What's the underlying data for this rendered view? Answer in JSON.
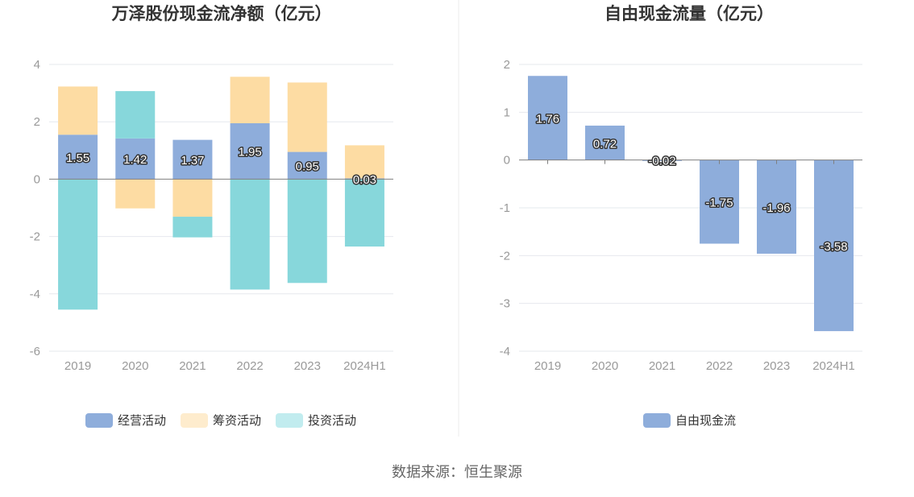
{
  "source": "数据来源：恒生聚源",
  "colors": {
    "operating": "#8eaddb",
    "financing": "#fddca3",
    "investing": "#87d7db",
    "investing_legend": "#c1ecef",
    "financing_legend": "#feeccd",
    "free_cash_flow": "#8eaddb",
    "grid": "#e6e8ee",
    "axis_zero": "#7f7f7f",
    "text_dark": "#333333",
    "tick": "#999999"
  },
  "chart_data": [
    {
      "type": "bar",
      "stacked": true,
      "title": "万泽股份现金流净额（亿元）",
      "categories": [
        "2019",
        "2020",
        "2021",
        "2022",
        "2023",
        "2024H1"
      ],
      "ylim": [
        -6,
        4
      ],
      "yticks": [
        4,
        2,
        0,
        -2,
        -4,
        -6
      ],
      "grid": true,
      "legend_position": "bottom",
      "series": [
        {
          "name": "经营活动",
          "values": [
            1.55,
            1.42,
            1.37,
            1.95,
            0.95,
            0.03
          ],
          "labels": [
            "1.55",
            "1.42",
            "1.37",
            "1.95",
            "0.95",
            "0.03"
          ]
        },
        {
          "name": "筹资活动",
          "values": [
            1.68,
            -1.02,
            -1.31,
            1.62,
            2.42,
            1.15
          ]
        },
        {
          "name": "投资活动",
          "values": [
            -4.55,
            1.65,
            -0.72,
            -3.85,
            -3.62,
            -2.35
          ]
        }
      ]
    },
    {
      "type": "bar",
      "title": "自由现金流量（亿元）",
      "categories": [
        "2019",
        "2020",
        "2021",
        "2022",
        "2023",
        "2024H1"
      ],
      "ylim": [
        -4,
        2
      ],
      "yticks": [
        2,
        1,
        0,
        -1,
        -2,
        -3,
        -4
      ],
      "grid": true,
      "legend_position": "bottom",
      "series": [
        {
          "name": "自由现金流",
          "values": [
            1.76,
            0.72,
            -0.02,
            -1.75,
            -1.96,
            -3.58
          ],
          "labels": [
            "1.76",
            "0.72",
            "-0.02",
            "-1.75",
            "-1.96",
            "-3.58"
          ]
        }
      ]
    }
  ]
}
